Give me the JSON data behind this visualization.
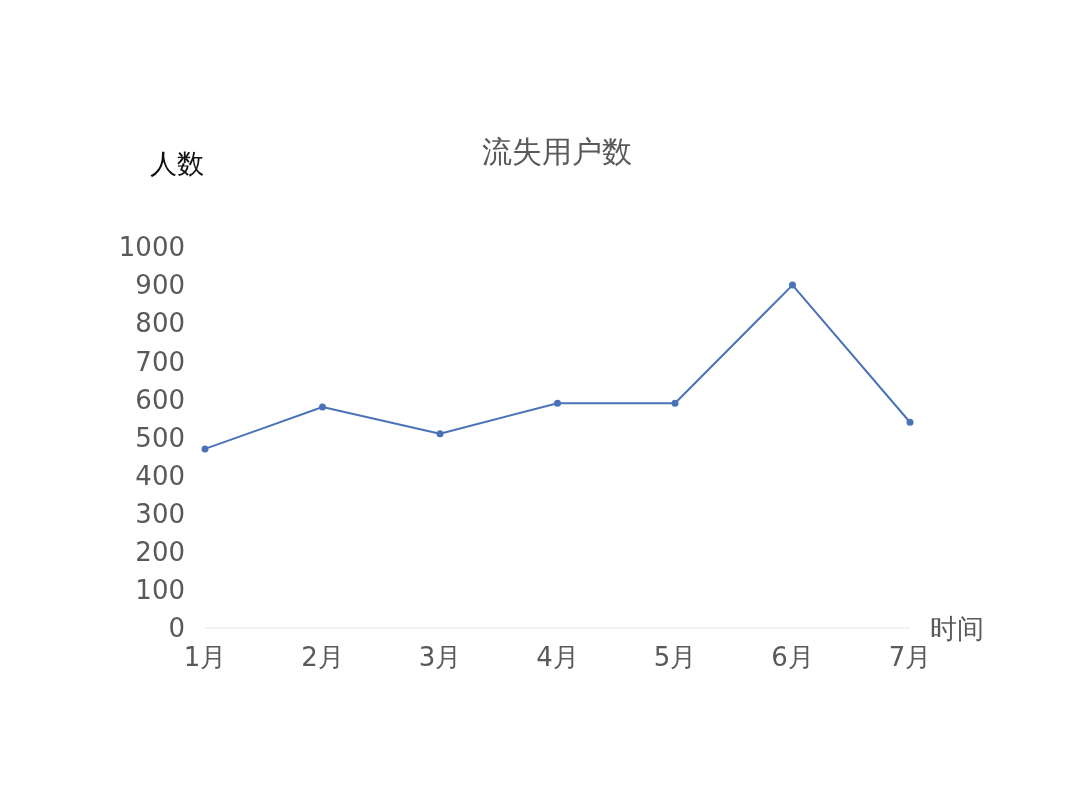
{
  "chart_data": {
    "type": "line",
    "title": "流失用户数",
    "xlabel": "时间",
    "ylabel": "人数",
    "categories": [
      "1月",
      "2月",
      "3月",
      "4月",
      "5月",
      "6月",
      "7月"
    ],
    "series": [
      {
        "color": "#4a72b8",
        "values": [
          470,
          580,
          510,
          590,
          590,
          900,
          540
        ]
      }
    ],
    "ylim": [
      0,
      1000
    ],
    "yticks": [
      0,
      100,
      200,
      300,
      400,
      500,
      600,
      700,
      800,
      900,
      1000
    ],
    "grid": false,
    "legend": false,
    "marker": "circle",
    "line_style": "solid"
  }
}
